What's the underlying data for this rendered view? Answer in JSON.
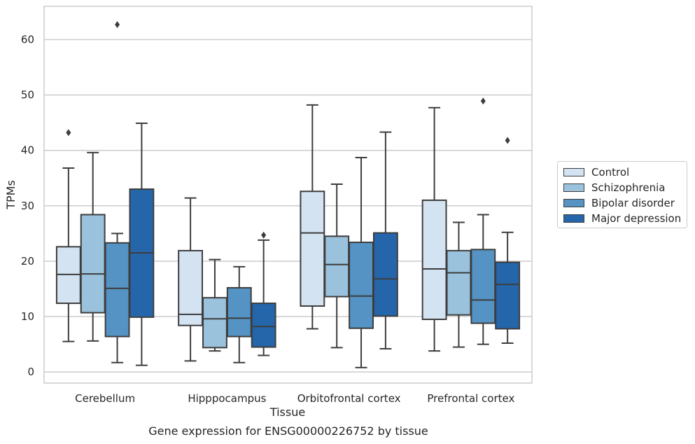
{
  "caption": "Gene expression for ENSG00000226752 by tissue",
  "chart_data": {
    "type": "box",
    "xlabel": "Tissue",
    "ylabel": "TPMs",
    "ylim": [
      -2,
      66
    ],
    "yticks": [
      0,
      10,
      20,
      30,
      40,
      50,
      60
    ],
    "grid": "horizontal",
    "legend_position": "right",
    "categories": [
      "Cerebellum",
      "Hipppocampus",
      "Orbitofrontal cortex",
      "Prefrontal cortex"
    ],
    "series": [
      {
        "name": "Control",
        "color": "#d3e3f2",
        "boxes": [
          {
            "whislo": 5.5,
            "q1": 12.4,
            "med": 17.6,
            "q3": 22.6,
            "whishi": 36.8,
            "fliers": [
              43.2
            ]
          },
          {
            "whislo": 2.0,
            "q1": 8.4,
            "med": 10.4,
            "q3": 21.9,
            "whishi": 31.4,
            "fliers": []
          },
          {
            "whislo": 7.8,
            "q1": 11.9,
            "med": 25.1,
            "q3": 32.6,
            "whishi": 48.2,
            "fliers": []
          },
          {
            "whislo": 3.8,
            "q1": 9.5,
            "med": 18.6,
            "q3": 31.0,
            "whishi": 47.7,
            "fliers": []
          }
        ]
      },
      {
        "name": "Schizophrenia",
        "color": "#9ac2dc",
        "boxes": [
          {
            "whislo": 5.6,
            "q1": 10.7,
            "med": 17.7,
            "q3": 28.4,
            "whishi": 39.6,
            "fliers": []
          },
          {
            "whislo": 3.8,
            "q1": 4.4,
            "med": 9.6,
            "q3": 13.4,
            "whishi": 20.3,
            "fliers": []
          },
          {
            "whislo": 4.4,
            "q1": 13.6,
            "med": 19.4,
            "q3": 24.5,
            "whishi": 33.9,
            "fliers": []
          },
          {
            "whislo": 4.5,
            "q1": 10.3,
            "med": 17.9,
            "q3": 21.9,
            "whishi": 27.0,
            "fliers": []
          }
        ]
      },
      {
        "name": "Bipolar disorder",
        "color": "#5493c3",
        "boxes": [
          {
            "whislo": 1.7,
            "q1": 6.4,
            "med": 15.1,
            "q3": 23.3,
            "whishi": 25.0,
            "fliers": [
              62.7
            ]
          },
          {
            "whislo": 1.7,
            "q1": 6.4,
            "med": 9.7,
            "q3": 15.2,
            "whishi": 19.0,
            "fliers": []
          },
          {
            "whislo": 0.8,
            "q1": 7.9,
            "med": 13.7,
            "q3": 23.4,
            "whishi": 38.7,
            "fliers": []
          },
          {
            "whislo": 5.0,
            "q1": 8.8,
            "med": 13.0,
            "q3": 22.1,
            "whishi": 28.4,
            "fliers": [
              48.9
            ]
          }
        ]
      },
      {
        "name": "Major depression",
        "color": "#2566ab",
        "boxes": [
          {
            "whislo": 1.2,
            "q1": 9.9,
            "med": 21.5,
            "q3": 33.0,
            "whishi": 44.9,
            "fliers": []
          },
          {
            "whislo": 3.0,
            "q1": 4.5,
            "med": 8.2,
            "q3": 12.4,
            "whishi": 23.8,
            "fliers": [
              24.7
            ]
          },
          {
            "whislo": 4.2,
            "q1": 10.1,
            "med": 16.8,
            "q3": 25.1,
            "whishi": 43.3,
            "fliers": []
          },
          {
            "whislo": 5.2,
            "q1": 7.8,
            "med": 15.8,
            "q3": 19.8,
            "whishi": 25.2,
            "fliers": [
              41.8
            ]
          }
        ]
      }
    ]
  }
}
